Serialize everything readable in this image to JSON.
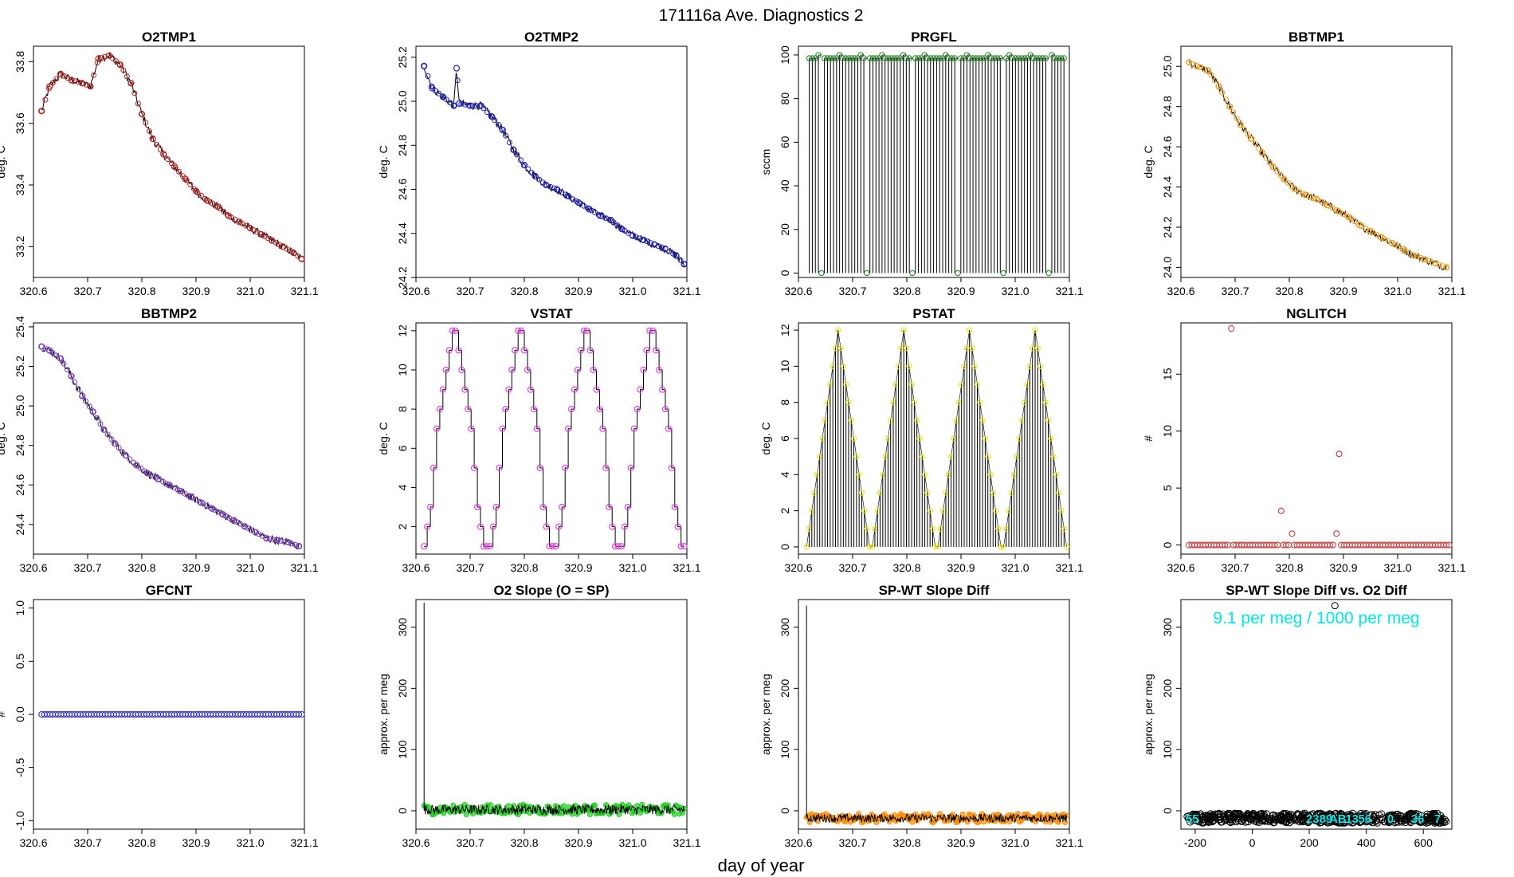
{
  "figure": {
    "title": "171116a   Ave. Diagnostics 2",
    "xlabel": "day of year"
  },
  "colors": {
    "red": "#b22222",
    "blue": "#1f1fbf",
    "green": "#2e8b2e",
    "orange": "#f0a020",
    "purple": "#7a3fbf",
    "magenta": "#e040e0",
    "yellow": "#e6e600",
    "brown": "#c04040",
    "navy": "#3030c0",
    "lime": "#22cc22",
    "darkorange": "#ff8c00",
    "cyan": "#00e5e5"
  },
  "chart_data": [
    {
      "id": "o2tmp1",
      "title": "O2TMP1",
      "type": "line",
      "ylabel": "deg. C",
      "xlim": [
        320.6,
        321.1
      ],
      "ylim": [
        33.1,
        33.85
      ],
      "xticks": [
        320.6,
        320.7,
        320.8,
        320.9,
        321.0,
        321.1
      ],
      "xtick_labels": [
        "320.6",
        "320.7",
        "320.8",
        "320.9",
        "321.0",
        "321.1"
      ],
      "yticks": [
        33.2,
        33.4,
        33.6,
        33.8
      ],
      "ytick_labels": [
        "33.2",
        "33.4",
        "33.6",
        "33.8"
      ],
      "color": "red",
      "marker_every": 1,
      "x": [
        320.615,
        320.63,
        320.65,
        320.67,
        320.69,
        320.705,
        320.72,
        320.74,
        320.76,
        320.78,
        320.8,
        320.82,
        320.84,
        320.86,
        320.88,
        320.9,
        320.92,
        320.94,
        320.96,
        320.98,
        321.0,
        321.02,
        321.04,
        321.06,
        321.08,
        321.095
      ],
      "y": [
        33.64,
        33.72,
        33.76,
        33.74,
        33.73,
        33.72,
        33.81,
        33.82,
        33.79,
        33.73,
        33.63,
        33.55,
        33.5,
        33.46,
        33.42,
        33.38,
        33.35,
        33.33,
        33.3,
        33.28,
        33.26,
        33.24,
        33.22,
        33.2,
        33.18,
        33.16
      ]
    },
    {
      "id": "o2tmp2",
      "title": "O2TMP2",
      "type": "line",
      "ylabel": "deg. C",
      "xlim": [
        320.6,
        321.1
      ],
      "ylim": [
        24.2,
        25.25
      ],
      "xticks": [
        320.6,
        320.7,
        320.8,
        320.9,
        321.0,
        321.1
      ],
      "xtick_labels": [
        "320.6",
        "320.7",
        "320.8",
        "320.9",
        "321.0",
        "321.1"
      ],
      "yticks": [
        24.2,
        24.4,
        24.6,
        24.8,
        25.0,
        25.2
      ],
      "ytick_labels": [
        "24.2",
        "24.4",
        "24.6",
        "24.8",
        "25.0",
        "25.2"
      ],
      "color": "blue",
      "marker_every": 1,
      "x": [
        320.615,
        320.63,
        320.65,
        320.67,
        320.675,
        320.68,
        320.7,
        320.72,
        320.74,
        320.76,
        320.78,
        320.8,
        320.82,
        320.84,
        320.86,
        320.88,
        320.9,
        320.92,
        320.94,
        320.96,
        320.98,
        321.0,
        321.02,
        321.04,
        321.06,
        321.08,
        321.095
      ],
      "y": [
        25.16,
        25.06,
        25.02,
        24.98,
        25.15,
        24.99,
        24.98,
        24.98,
        24.93,
        24.87,
        24.78,
        24.71,
        24.66,
        24.62,
        24.6,
        24.57,
        24.54,
        24.51,
        24.48,
        24.46,
        24.42,
        24.39,
        24.37,
        24.35,
        24.33,
        24.3,
        24.26
      ]
    },
    {
      "id": "prgfl",
      "title": "PRGFL",
      "type": "spike",
      "ylabel": "sccm",
      "xlim": [
        320.6,
        321.1
      ],
      "ylim": [
        -2,
        104
      ],
      "xticks": [
        320.6,
        320.7,
        320.8,
        320.9,
        321.0,
        321.1
      ],
      "xtick_labels": [
        "320.6",
        "320.7",
        "320.8",
        "320.9",
        "321.0",
        "321.1"
      ],
      "yticks": [
        0,
        20,
        40,
        60,
        80,
        100
      ],
      "ytick_labels": [
        "0",
        "20",
        "40",
        "60",
        "80",
        "100"
      ],
      "color": "green",
      "n_spikes": 85,
      "x_start": 320.62,
      "x_end": 321.09,
      "peak": 98.5,
      "low": 0,
      "zero_every": 15
    },
    {
      "id": "bbtmp1",
      "title": "BBTMP1",
      "type": "line",
      "ylabel": "deg. C",
      "xlim": [
        320.6,
        321.1
      ],
      "ylim": [
        23.95,
        25.1
      ],
      "xticks": [
        320.6,
        320.7,
        320.8,
        320.9,
        321.0,
        321.1
      ],
      "xtick_labels": [
        "320.6",
        "320.7",
        "320.8",
        "320.9",
        "321.0",
        "321.1"
      ],
      "yticks": [
        24.0,
        24.2,
        24.4,
        24.6,
        24.8,
        25.0
      ],
      "ytick_labels": [
        "24.0",
        "24.2",
        "24.4",
        "24.6",
        "24.8",
        "25.0"
      ],
      "color": "orange",
      "marker_every": 1,
      "x": [
        320.615,
        320.63,
        320.65,
        320.67,
        320.69,
        320.71,
        320.73,
        320.75,
        320.77,
        320.79,
        320.81,
        320.83,
        320.85,
        320.87,
        320.89,
        320.91,
        320.93,
        320.95,
        320.97,
        320.99,
        321.01,
        321.03,
        321.05,
        321.07,
        321.09
      ],
      "y": [
        25.02,
        25.0,
        24.98,
        24.9,
        24.8,
        24.71,
        24.64,
        24.57,
        24.5,
        24.44,
        24.39,
        24.36,
        24.34,
        24.31,
        24.28,
        24.25,
        24.21,
        24.18,
        24.15,
        24.12,
        24.09,
        24.06,
        24.04,
        24.02,
        24.0
      ]
    },
    {
      "id": "bbtmp2",
      "title": "BBTMP2",
      "type": "line",
      "ylabel": "deg. C",
      "xlim": [
        320.6,
        321.1
      ],
      "ylim": [
        24.25,
        25.42
      ],
      "xticks": [
        320.6,
        320.7,
        320.8,
        320.9,
        321.0,
        321.1
      ],
      "xtick_labels": [
        "320.6",
        "320.7",
        "320.8",
        "320.9",
        "321.0",
        "321.1"
      ],
      "yticks": [
        24.4,
        24.6,
        24.8,
        25.0,
        25.2,
        25.4
      ],
      "ytick_labels": [
        "24.4",
        "24.6",
        "24.8",
        "25.0",
        "25.2",
        "25.4"
      ],
      "color": "purple",
      "marker_every": 1,
      "x": [
        320.615,
        320.63,
        320.65,
        320.67,
        320.69,
        320.71,
        320.73,
        320.75,
        320.77,
        320.79,
        320.81,
        320.83,
        320.85,
        320.87,
        320.89,
        320.91,
        320.93,
        320.95,
        320.97,
        320.99,
        321.01,
        321.03,
        321.05,
        321.07,
        321.09
      ],
      "y": [
        25.3,
        25.28,
        25.24,
        25.15,
        25.05,
        24.97,
        24.88,
        24.81,
        24.75,
        24.7,
        24.66,
        24.63,
        24.6,
        24.57,
        24.54,
        24.51,
        24.48,
        24.45,
        24.42,
        24.39,
        24.36,
        24.33,
        24.32,
        24.31,
        24.29
      ]
    },
    {
      "id": "vstat",
      "title": "VSTAT",
      "type": "step",
      "ylabel": "deg. C",
      "xlim": [
        320.6,
        321.1
      ],
      "ylim": [
        0.6,
        12.4
      ],
      "xticks": [
        320.6,
        320.7,
        320.8,
        320.9,
        321.0,
        321.1
      ],
      "xtick_labels": [
        "320.6",
        "320.7",
        "320.8",
        "320.9",
        "321.0",
        "321.1"
      ],
      "yticks": [
        2,
        4,
        6,
        8,
        10,
        12
      ],
      "ytick_labels": [
        "2",
        "4",
        "6",
        "8",
        "10",
        "12"
      ],
      "color": "magenta",
      "pattern": [
        1,
        2,
        3,
        5,
        7,
        8,
        9,
        10,
        11,
        12,
        12,
        11,
        10,
        9,
        8,
        7,
        5,
        3,
        2,
        1,
        1
      ],
      "cycles": 4,
      "x_start": 320.615,
      "x_end": 321.095
    },
    {
      "id": "pstat",
      "title": "PSTAT",
      "type": "spike_pattern",
      "ylabel": "deg. C",
      "xlim": [
        320.6,
        321.1
      ],
      "ylim": [
        -0.4,
        12.4
      ],
      "xticks": [
        320.6,
        320.7,
        320.8,
        320.9,
        321.0,
        321.1
      ],
      "xtick_labels": [
        "320.6",
        "320.7",
        "320.8",
        "320.9",
        "321.0",
        "321.1"
      ],
      "yticks": [
        0,
        2,
        4,
        6,
        8,
        10,
        12
      ],
      "ytick_labels": [
        "0",
        "2",
        "4",
        "6",
        "8",
        "10",
        "12"
      ],
      "color": "yellow",
      "pattern": [
        0,
        1,
        2,
        3,
        4,
        5,
        6,
        7,
        8,
        9,
        10,
        11,
        12,
        11,
        10,
        9,
        8,
        7,
        6,
        5,
        4,
        3,
        2,
        1,
        0
      ],
      "cycles": 4,
      "x_start": 320.615,
      "x_end": 321.095
    },
    {
      "id": "nglitch",
      "title": "NGLITCH",
      "type": "scatter",
      "ylabel": "#",
      "xlim": [
        320.6,
        321.1
      ],
      "ylim": [
        -0.8,
        19.5
      ],
      "xticks": [
        320.6,
        320.7,
        320.8,
        320.9,
        321.0,
        321.1
      ],
      "xtick_labels": [
        "320.6",
        "320.7",
        "320.8",
        "320.9",
        "321.0",
        "321.1"
      ],
      "yticks": [
        0,
        5,
        10,
        15
      ],
      "ytick_labels": [
        "0",
        "5",
        "10",
        "15"
      ],
      "color": "brown",
      "n_points": 95,
      "x_start": 320.615,
      "x_end": 321.095,
      "baseline": 0,
      "outliers": [
        {
          "x": 320.693,
          "y": 19
        },
        {
          "x": 320.785,
          "y": 3
        },
        {
          "x": 320.805,
          "y": 1
        },
        {
          "x": 320.887,
          "y": 1
        },
        {
          "x": 320.892,
          "y": 8
        }
      ]
    },
    {
      "id": "gfcnt",
      "title": "GFCNT",
      "type": "scatter",
      "ylabel": "#",
      "xlim": [
        320.6,
        321.1
      ],
      "ylim": [
        -1.08,
        1.08
      ],
      "xticks": [
        320.6,
        320.7,
        320.8,
        320.9,
        321.0,
        321.1
      ],
      "xtick_labels": [
        "320.6",
        "320.7",
        "320.8",
        "320.9",
        "321.0",
        "321.1"
      ],
      "yticks": [
        -1.0,
        -0.5,
        0.0,
        0.5,
        1.0
      ],
      "ytick_labels": [
        "-1.0",
        "-0.5",
        "0.0",
        "0.5",
        "1.0"
      ],
      "color": "navy",
      "n_points": 95,
      "x_start": 320.615,
      "x_end": 321.095,
      "baseline": 0,
      "outliers": []
    },
    {
      "id": "o2slope",
      "title": "O2 Slope (O = SP)",
      "type": "noise",
      "ylabel": "approx. per meg",
      "xlim": [
        320.6,
        321.1
      ],
      "ylim": [
        -30,
        345
      ],
      "xticks": [
        320.6,
        320.7,
        320.8,
        320.9,
        321.0,
        321.1
      ],
      "xtick_labels": [
        "320.6",
        "320.7",
        "320.8",
        "320.9",
        "321.0",
        "321.1"
      ],
      "yticks": [
        0,
        100,
        200,
        300
      ],
      "ytick_labels": [
        "0",
        "100",
        "200",
        "300"
      ],
      "color": "lime",
      "x_start": 320.615,
      "x_end": 321.095,
      "level": 2,
      "amplitude": 8,
      "spike": {
        "x": 320.615,
        "y": 340
      }
    },
    {
      "id": "spwtdiff",
      "title": "SP-WT Slope Diff",
      "type": "noise",
      "ylabel": "approx. per meg",
      "xlim": [
        320.6,
        321.1
      ],
      "ylim": [
        -30,
        345
      ],
      "xticks": [
        320.6,
        320.7,
        320.8,
        320.9,
        321.0,
        321.1
      ],
      "xtick_labels": [
        "320.6",
        "320.7",
        "320.8",
        "320.9",
        "321.0",
        "321.1"
      ],
      "yticks": [
        0,
        100,
        200,
        300
      ],
      "ytick_labels": [
        "0",
        "100",
        "200",
        "300"
      ],
      "color": "darkorange",
      "x_start": 320.615,
      "x_end": 321.095,
      "level": -12,
      "amplitude": 7,
      "spike": {
        "x": 320.615,
        "y": 335
      }
    },
    {
      "id": "spwtvso2",
      "title": "SP-WT Slope Diff vs. O2 Diff",
      "type": "scatter_cloud",
      "ylabel": "approx. per meg",
      "xlim": [
        -250,
        700
      ],
      "ylim": [
        -30,
        345
      ],
      "xticks": [
        -200,
        0,
        200,
        400,
        600
      ],
      "xtick_labels": [
        "-200",
        "0",
        "200",
        "400",
        "600"
      ],
      "yticks": [
        0,
        100,
        200,
        300
      ],
      "ytick_labels": [
        "0",
        "100",
        "200",
        "300"
      ],
      "color": "cyan",
      "annotation": "9.1 per meg / 1000 per meg",
      "x_range": [
        -230,
        680
      ],
      "level": -12,
      "amplitude": 8,
      "outlier": {
        "x": 290,
        "y": 335
      },
      "labels": [
        {
          "x": -210,
          "t": "55"
        },
        {
          "x": 235,
          "t": "2389"
        },
        {
          "x": 300,
          "t": "AB"
        },
        {
          "x": 350,
          "t": "13"
        },
        {
          "x": 395,
          "t": "56"
        },
        {
          "x": 485,
          "t": "0"
        },
        {
          "x": 580,
          "t": "36"
        },
        {
          "x": 650,
          "t": "7"
        }
      ]
    }
  ]
}
